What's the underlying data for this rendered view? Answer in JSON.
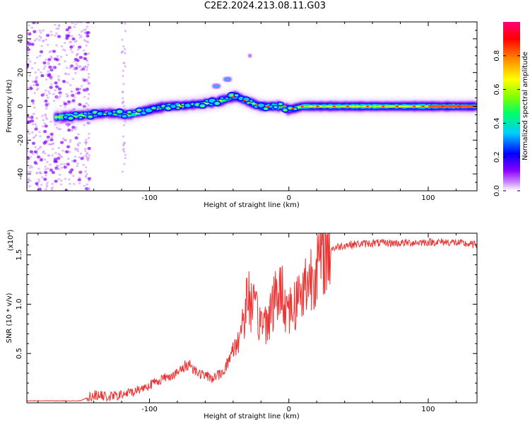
{
  "title": "C2E2.2024.213.08.11.G03",
  "chart_data": [
    {
      "type": "heatmap",
      "xlabel": "Height of straight line (km)",
      "ylabel": "Frequency (Hz)",
      "xlim": [
        -188,
        135
      ],
      "ylim": [
        -50,
        50
      ],
      "xticks": [
        -100,
        0,
        100
      ],
      "yticks": [
        -40,
        -20,
        0,
        20,
        40
      ],
      "colorbar": {
        "label": "Normalized spectral amplitude",
        "range": [
          0,
          1
        ],
        "ticks": [
          "0.0",
          "0.2",
          "0.4",
          "0.6",
          "0.8"
        ],
        "colors": [
          "#ffffff",
          "#cc88ff",
          "#8800ff",
          "#0000ff",
          "#00ccff",
          "#00ff66",
          "#88ff00",
          "#ffff00",
          "#ff8800",
          "#ff0000",
          "#ff0077"
        ]
      },
      "ridge": [
        {
          "x": -168,
          "f": -6.5
        },
        {
          "x": -150,
          "f": -5.5
        },
        {
          "x": -130,
          "f": -4
        },
        {
          "x": -115,
          "f": -5
        },
        {
          "x": -100,
          "f": -2
        },
        {
          "x": -88,
          "f": 0
        },
        {
          "x": -75,
          "f": 0.5
        },
        {
          "x": -62,
          "f": 1.5
        },
        {
          "x": -50,
          "f": 3
        },
        {
          "x": -38,
          "f": 6
        },
        {
          "x": -30,
          "f": 3
        },
        {
          "x": -20,
          "f": 0
        },
        {
          "x": -5,
          "f": 0
        },
        {
          "x": 0,
          "f": -2
        },
        {
          "x": 10,
          "f": 0
        },
        {
          "x": 40,
          "f": 0
        },
        {
          "x": 80,
          "f": 0
        },
        {
          "x": 135,
          "f": 0
        }
      ],
      "secondary": [
        {
          "x": -52,
          "f": 12
        },
        {
          "x": -44,
          "f": 16
        },
        {
          "x": -28,
          "f": 30
        }
      ]
    },
    {
      "type": "line",
      "xlabel": "Height of straight line (km)",
      "ylabel": "SNR (10 * v/v)",
      "y_multiplier": "(x10⁴)",
      "xlim": [
        -188,
        135
      ],
      "ylim": [
        0,
        1.72
      ],
      "xticks": [
        -100,
        0,
        100
      ],
      "yticks": [
        0.5,
        1.0,
        1.5
      ],
      "color": "#ee3333",
      "series": [
        {
          "x": [
            -188,
            -150,
            -140,
            -130,
            -120,
            -110,
            -100,
            -90,
            -80,
            -72,
            -65,
            -55,
            -48,
            -44,
            -40,
            -35,
            -32,
            -29,
            -26,
            -22,
            -18,
            -14,
            -10,
            -6,
            -2,
            2,
            6,
            10,
            14,
            18,
            22,
            26,
            30,
            40,
            60,
            80,
            100,
            115,
            135
          ],
          "y": [
            0.02,
            0.02,
            0.08,
            0.06,
            0.08,
            0.12,
            0.18,
            0.25,
            0.3,
            0.4,
            0.3,
            0.25,
            0.3,
            0.4,
            0.55,
            0.7,
            0.9,
            1.1,
            0.95,
            0.85,
            0.8,
            0.9,
            1.05,
            1.15,
            1.0,
            0.95,
            1.05,
            1.15,
            1.25,
            1.35,
            1.45,
            1.52,
            1.56,
            1.6,
            1.62,
            1.62,
            1.63,
            1.63,
            1.6
          ]
        }
      ]
    }
  ]
}
